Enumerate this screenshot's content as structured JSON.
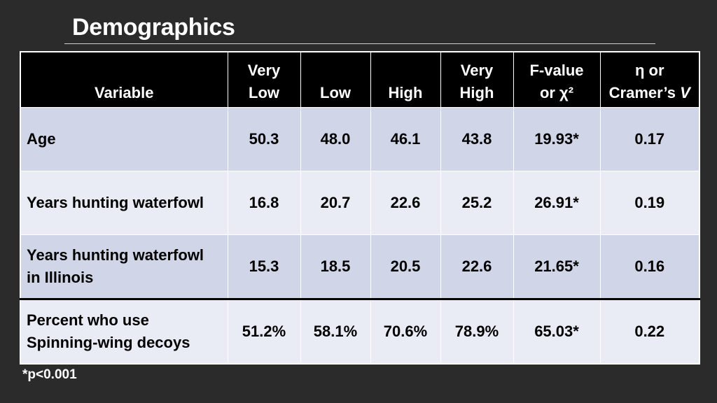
{
  "slide": {
    "title": "Demographics",
    "footnote": "*p<0.001"
  },
  "table": {
    "headers": [
      {
        "line1": "Variable",
        "line2": ""
      },
      {
        "line1": "Very",
        "line2": "Low"
      },
      {
        "line1": "Low",
        "line2": ""
      },
      {
        "line1": "High",
        "line2": ""
      },
      {
        "line1": "Very",
        "line2": "High"
      },
      {
        "line1": "F-value",
        "line2": "or χ²"
      },
      {
        "line1": "η or",
        "line2": "Cramer’s ",
        "line2_italic": "V"
      }
    ],
    "rows": [
      {
        "variable_line1": "Age",
        "variable_line2": "",
        "very_low": "50.3",
        "low": "48.0",
        "high": "46.1",
        "very_high": "43.8",
        "f_value": "19.93*",
        "effect": "0.17"
      },
      {
        "variable_line1": "Years hunting waterfowl",
        "variable_line2": "",
        "very_low": "16.8",
        "low": "20.7",
        "high": "22.6",
        "very_high": "25.2",
        "f_value": "26.91*",
        "effect": "0.19"
      },
      {
        "variable_line1": "Years hunting waterfowl",
        "variable_line2": "in Illinois",
        "very_low": "15.3",
        "low": "18.5",
        "high": "20.5",
        "very_high": "22.6",
        "f_value": "21.65*",
        "effect": "0.16"
      },
      {
        "variable_line1": "Percent who use",
        "variable_line2": "Spinning-wing decoys",
        "very_low": "51.2%",
        "low": "58.1%",
        "high": "70.6%",
        "very_high": "78.9%",
        "f_value": "65.03*",
        "effect": "0.22"
      }
    ]
  },
  "colors": {
    "background": "#2b2b2b",
    "header_bg": "#000000",
    "row_dark": "#d0d6e8",
    "row_light": "#e9ebf5"
  }
}
